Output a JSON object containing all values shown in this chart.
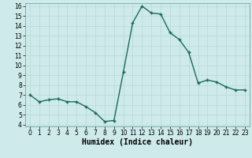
{
  "x": [
    0,
    1,
    2,
    3,
    4,
    5,
    6,
    7,
    8,
    9,
    10,
    11,
    12,
    13,
    14,
    15,
    16,
    17,
    18,
    19,
    20,
    21,
    22,
    23
  ],
  "y": [
    7.0,
    6.3,
    6.5,
    6.6,
    6.3,
    6.3,
    5.8,
    5.2,
    4.3,
    4.4,
    9.3,
    14.3,
    16.0,
    15.3,
    15.2,
    13.3,
    12.6,
    11.3,
    8.2,
    8.5,
    8.3,
    7.8,
    7.5,
    7.5
  ],
  "xlabel": "Humidex (Indice chaleur)",
  "ylim": [
    4,
    16
  ],
  "xlim": [
    -0.5,
    23.5
  ],
  "yticks": [
    4,
    5,
    6,
    7,
    8,
    9,
    10,
    11,
    12,
    13,
    14,
    15,
    16
  ],
  "xticks": [
    0,
    1,
    2,
    3,
    4,
    5,
    6,
    7,
    8,
    9,
    10,
    11,
    12,
    13,
    14,
    15,
    16,
    17,
    18,
    19,
    20,
    21,
    22,
    23
  ],
  "line_color": "#1a6b5a",
  "marker": "+",
  "marker_size": 3.5,
  "bg_color": "#ceeaea",
  "grid_color": "#b8d8d8",
  "xlabel_fontsize": 7,
  "tick_fontsize": 5.5,
  "linewidth": 1.0
}
